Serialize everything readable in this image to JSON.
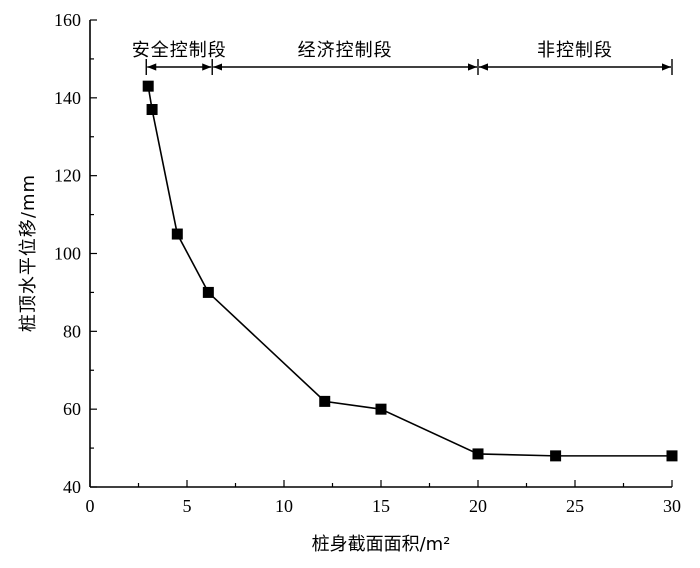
{
  "chart_data": {
    "type": "line",
    "xlabel": "桩身截面面积/m²",
    "ylabel": "桩顶水平位移/mm",
    "xlim": [
      0,
      30
    ],
    "ylim": [
      40,
      160
    ],
    "xticks": [
      0,
      5,
      10,
      15,
      20,
      25,
      30
    ],
    "yticks": [
      40,
      60,
      80,
      100,
      120,
      140,
      160
    ],
    "grid": false,
    "series": [
      {
        "marker": "square",
        "x": [
          3.0,
          3.2,
          4.5,
          6.1,
          12.1,
          15.0,
          20.0,
          24.0,
          30.0
        ],
        "y": [
          143,
          137,
          105,
          90,
          62,
          60,
          48.5,
          48,
          48
        ]
      }
    ],
    "segments": [
      {
        "label": "安全控制段",
        "x_start": 2.9,
        "x_end": 6.3
      },
      {
        "label": "经济控制段",
        "x_start": 6.3,
        "x_end": 20.0
      },
      {
        "label": "非控制段",
        "x_start": 20.0,
        "x_end": 30.0
      }
    ]
  }
}
